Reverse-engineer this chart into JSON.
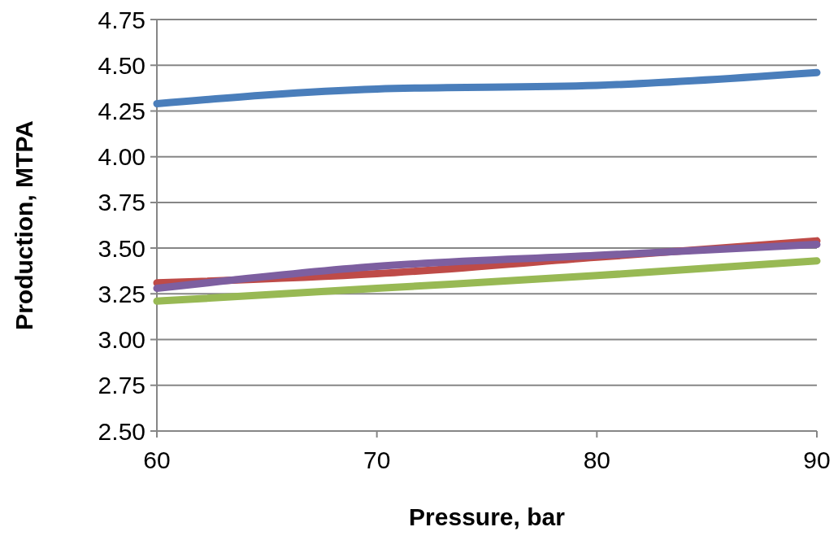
{
  "chart_data": {
    "type": "line",
    "xlabel": "Pressure, bar",
    "ylabel": "Production, MTPA",
    "x": [
      60,
      70,
      80,
      90
    ],
    "series": [
      {
        "color": "#4a7ebb",
        "values": [
          4.29,
          4.37,
          4.39,
          4.46
        ]
      },
      {
        "color": "#be4b48",
        "values": [
          3.31,
          3.36,
          3.45,
          3.54
        ]
      },
      {
        "color": "#7d5fa0",
        "values": [
          3.28,
          3.4,
          3.46,
          3.52
        ]
      },
      {
        "color": "#98b954",
        "values": [
          3.21,
          3.28,
          3.35,
          3.43
        ]
      }
    ],
    "xlim": [
      60,
      90
    ],
    "xticks": [
      60,
      70,
      80,
      90
    ],
    "ylim": [
      2.5,
      4.75
    ],
    "yticks": [
      {
        "value": 2.5,
        "label": "2.50"
      },
      {
        "value": 2.75,
        "label": "2.75"
      },
      {
        "value": 3,
        "label": "3.00"
      },
      {
        "value": 3.25,
        "label": "3.25"
      },
      {
        "value": 3.5,
        "label": "3.50"
      },
      {
        "value": 3.75,
        "label": "3.75"
      },
      {
        "value": 4,
        "label": "4.00"
      },
      {
        "value": 4.25,
        "label": "4.25"
      },
      {
        "value": 4.5,
        "label": "4.50"
      },
      {
        "value": 4.75,
        "label": "4.75"
      }
    ],
    "grid": "y",
    "marker": "none",
    "line_style": "solid"
  }
}
